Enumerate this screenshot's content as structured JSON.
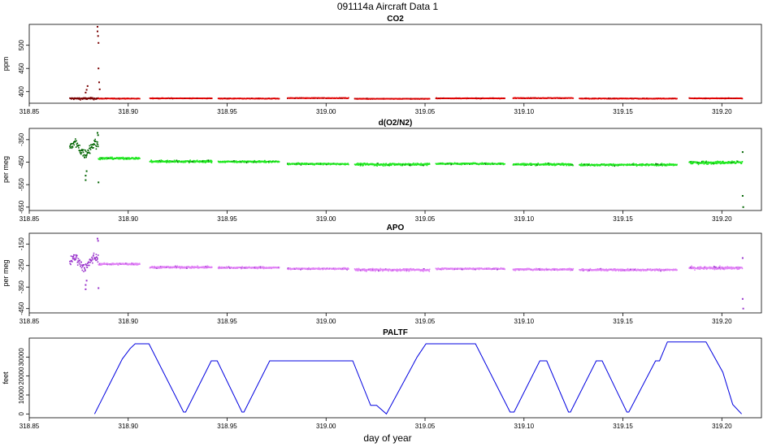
{
  "figure": {
    "title": "091114a   Aircraft Data 1",
    "xlabel": "day of year"
  },
  "chart_data": [
    {
      "type": "scatter",
      "title": "CO2",
      "ylabel": "ppm",
      "xlim": [
        318.85,
        319.22
      ],
      "ylim": [
        375,
        545
      ],
      "xticks": [
        "318.85",
        "318.90",
        "318.95",
        "319.00",
        "319.05",
        "319.10",
        "319.15",
        "319.20"
      ],
      "yticks": [
        400,
        450,
        500
      ],
      "colors": {
        "main": "#e00000",
        "dark": "#7a0000"
      },
      "segments": [
        {
          "x0": 318.8705,
          "x1": 318.885,
          "y": 385,
          "noise": 4,
          "color": "dark"
        },
        {
          "x0": 318.885,
          "x1": 318.906,
          "y": 385,
          "noise": 1.2,
          "color": "main"
        },
        {
          "x0": 318.911,
          "x1": 318.9425,
          "y": 385.5,
          "noise": 1.2,
          "color": "main"
        },
        {
          "x0": 318.9455,
          "x1": 318.9765,
          "y": 385,
          "noise": 1.2,
          "color": "main"
        },
        {
          "x0": 318.9805,
          "x1": 319.0115,
          "y": 386,
          "noise": 1.2,
          "color": "main"
        },
        {
          "x0": 319.0145,
          "x1": 319.0525,
          "y": 384.5,
          "noise": 1.2,
          "color": "main"
        },
        {
          "x0": 319.0555,
          "x1": 319.0905,
          "y": 385.5,
          "noise": 1.2,
          "color": "main"
        },
        {
          "x0": 319.0945,
          "x1": 319.125,
          "y": 386,
          "noise": 1.2,
          "color": "main"
        },
        {
          "x0": 319.128,
          "x1": 319.1775,
          "y": 385,
          "noise": 1.2,
          "color": "main"
        },
        {
          "x0": 319.1835,
          "x1": 319.2105,
          "y": 385.5,
          "noise": 1.2,
          "color": "main"
        }
      ],
      "outliers": [
        {
          "x": 318.8785,
          "y": 398,
          "color": "dark"
        },
        {
          "x": 318.879,
          "y": 404,
          "color": "dark"
        },
        {
          "x": 318.8795,
          "y": 412,
          "color": "dark"
        },
        {
          "x": 318.8845,
          "y": 540,
          "color": "dark"
        },
        {
          "x": 318.8845,
          "y": 530,
          "color": "dark"
        },
        {
          "x": 318.8848,
          "y": 520,
          "color": "dark"
        },
        {
          "x": 318.885,
          "y": 505,
          "color": "dark"
        },
        {
          "x": 318.885,
          "y": 450,
          "color": "dark"
        },
        {
          "x": 318.8853,
          "y": 420,
          "color": "dark"
        },
        {
          "x": 318.8856,
          "y": 405,
          "color": "dark"
        }
      ]
    },
    {
      "type": "scatter",
      "title": "d(O2/N2)",
      "ylabel": "per meg",
      "xlim": [
        318.85,
        319.22
      ],
      "ylim": [
        -665,
        -300
      ],
      "xticks": [
        "318.85",
        "318.90",
        "318.95",
        "319.00",
        "319.05",
        "319.10",
        "319.15",
        "319.20"
      ],
      "yticks": [
        -350,
        -450,
        -550,
        -650
      ],
      "colors": {
        "main": "#22e822",
        "dark": "#006400"
      },
      "segments": [
        {
          "x0": 318.8705,
          "x1": 318.885,
          "y": -390,
          "noise": 40,
          "color": "dark"
        },
        {
          "x0": 318.885,
          "x1": 318.906,
          "y": -433,
          "noise": 8,
          "color": "main"
        },
        {
          "x0": 318.911,
          "x1": 318.9425,
          "y": -447,
          "noise": 9,
          "color": "main"
        },
        {
          "x0": 318.9455,
          "x1": 318.9765,
          "y": -448,
          "noise": 7,
          "color": "main"
        },
        {
          "x0": 318.9805,
          "x1": 319.0115,
          "y": -458,
          "noise": 6,
          "color": "main"
        },
        {
          "x0": 319.0145,
          "x1": 319.0525,
          "y": -460,
          "noise": 10,
          "color": "main"
        },
        {
          "x0": 319.0555,
          "x1": 319.0905,
          "y": -457,
          "noise": 7,
          "color": "main"
        },
        {
          "x0": 319.0945,
          "x1": 319.125,
          "y": -460,
          "noise": 8,
          "color": "main"
        },
        {
          "x0": 319.128,
          "x1": 319.1775,
          "y": -462,
          "noise": 8,
          "color": "main"
        },
        {
          "x0": 319.1835,
          "x1": 319.2105,
          "y": -452,
          "noise": 12,
          "color": "main"
        }
      ],
      "outliers": [
        {
          "x": 318.8785,
          "y": -530,
          "color": "dark"
        },
        {
          "x": 318.8785,
          "y": -510,
          "color": "dark"
        },
        {
          "x": 318.879,
          "y": -490,
          "color": "dark"
        },
        {
          "x": 318.8845,
          "y": -320,
          "color": "dark"
        },
        {
          "x": 318.8848,
          "y": -330,
          "color": "dark"
        },
        {
          "x": 318.885,
          "y": -540,
          "color": "dark"
        },
        {
          "x": 319.2105,
          "y": -405,
          "color": "dark"
        },
        {
          "x": 319.2105,
          "y": -600,
          "color": "dark"
        },
        {
          "x": 319.2108,
          "y": -650,
          "color": "dark"
        }
      ]
    },
    {
      "type": "scatter",
      "title": "APO",
      "ylabel": "per meg",
      "xlim": [
        318.85,
        319.22
      ],
      "ylim": [
        -470,
        -100
      ],
      "xticks": [
        "318.85",
        "318.90",
        "318.95",
        "319.00",
        "319.05",
        "319.10",
        "319.15",
        "319.20"
      ],
      "yticks": [
        -150,
        -250,
        -350,
        -450
      ],
      "colors": {
        "main": "#e080f5",
        "dark": "#9933cc"
      },
      "segments": [
        {
          "x0": 318.8705,
          "x1": 318.885,
          "y": -235,
          "noise": 40,
          "color": "dark"
        },
        {
          "x0": 318.885,
          "x1": 318.906,
          "y": -243,
          "noise": 8,
          "color": "main"
        },
        {
          "x0": 318.911,
          "x1": 318.9425,
          "y": -258,
          "noise": 9,
          "color": "main"
        },
        {
          "x0": 318.9455,
          "x1": 318.9765,
          "y": -260,
          "noise": 7,
          "color": "main"
        },
        {
          "x0": 318.9805,
          "x1": 319.0115,
          "y": -265,
          "noise": 6,
          "color": "main"
        },
        {
          "x0": 319.0145,
          "x1": 319.0525,
          "y": -270,
          "noise": 10,
          "color": "main"
        },
        {
          "x0": 319.0555,
          "x1": 319.0905,
          "y": -265,
          "noise": 7,
          "color": "main"
        },
        {
          "x0": 319.0945,
          "x1": 319.125,
          "y": -268,
          "noise": 8,
          "color": "main"
        },
        {
          "x0": 319.128,
          "x1": 319.1775,
          "y": -270,
          "noise": 8,
          "color": "main"
        },
        {
          "x0": 319.1835,
          "x1": 319.2105,
          "y": -262,
          "noise": 12,
          "color": "main"
        }
      ],
      "outliers": [
        {
          "x": 318.8785,
          "y": -360,
          "color": "dark"
        },
        {
          "x": 318.8785,
          "y": -340,
          "color": "dark"
        },
        {
          "x": 318.879,
          "y": -320,
          "color": "dark"
        },
        {
          "x": 318.8845,
          "y": -125,
          "color": "dark"
        },
        {
          "x": 318.8848,
          "y": -135,
          "color": "dark"
        },
        {
          "x": 318.885,
          "y": -355,
          "color": "dark"
        },
        {
          "x": 319.2105,
          "y": -215,
          "color": "dark"
        },
        {
          "x": 319.2105,
          "y": -405,
          "color": "dark"
        },
        {
          "x": 319.2108,
          "y": -450,
          "color": "dark"
        }
      ]
    },
    {
      "type": "line",
      "title": "PALTF",
      "ylabel": "feet",
      "xlim": [
        318.85,
        319.22
      ],
      "ylim": [
        -2000,
        40000
      ],
      "xticks": [
        "318.85",
        "318.90",
        "318.95",
        "319.00",
        "319.05",
        "319.10",
        "319.15",
        "319.20"
      ],
      "yticks": [
        0,
        10000,
        20000,
        30000
      ],
      "colors": {
        "main": "#0000e0"
      },
      "points": [
        [
          318.883,
          0
        ],
        [
          318.897,
          29000
        ],
        [
          318.901,
          34500
        ],
        [
          318.9035,
          37000
        ],
        [
          318.9105,
          37000
        ],
        [
          318.928,
          1000
        ],
        [
          318.929,
          1000
        ],
        [
          318.942,
          28000
        ],
        [
          318.945,
          28000
        ],
        [
          318.9575,
          1000
        ],
        [
          318.9585,
          1000
        ],
        [
          318.9715,
          28000
        ],
        [
          319.0135,
          28000
        ],
        [
          319.0225,
          4500
        ],
        [
          319.0255,
          4500
        ],
        [
          319.0305,
          0
        ],
        [
          319.046,
          30000
        ],
        [
          319.0505,
          37000
        ],
        [
          319.0755,
          37000
        ],
        [
          319.093,
          1000
        ],
        [
          319.095,
          1000
        ],
        [
          319.108,
          28000
        ],
        [
          319.1115,
          28000
        ],
        [
          319.1225,
          1000
        ],
        [
          319.1235,
          1000
        ],
        [
          319.1365,
          28000
        ],
        [
          319.1395,
          28000
        ],
        [
          319.152,
          1000
        ],
        [
          319.153,
          1000
        ],
        [
          319.1665,
          28000
        ],
        [
          319.1685,
          28000
        ],
        [
          319.1725,
          38000
        ],
        [
          319.192,
          38000
        ],
        [
          319.2005,
          22000
        ],
        [
          319.2055,
          5000
        ],
        [
          319.21,
          0
        ]
      ]
    }
  ]
}
